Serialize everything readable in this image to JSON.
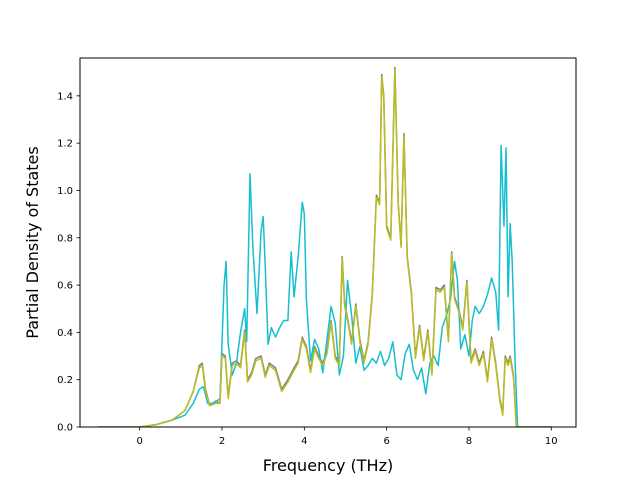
{
  "chart_data": {
    "type": "line",
    "title": "",
    "xlabel": "Frequency (THz)",
    "ylabel": "Partial Density of States",
    "xlim": [
      -1.45,
      10.6
    ],
    "ylim": [
      0.0,
      1.56
    ],
    "xticks": [
      0,
      2,
      4,
      6,
      8,
      10
    ],
    "yticks": [
      0.0,
      0.2,
      0.4,
      0.6,
      0.8,
      1.0,
      1.2,
      1.4
    ],
    "grid": false,
    "legend": "none",
    "series": [
      {
        "color": "#7f7f7f",
        "points": [
          [
            -1.0,
            0.0
          ],
          [
            0.0,
            0.0
          ],
          [
            0.4,
            0.01
          ],
          [
            0.8,
            0.03
          ],
          [
            1.1,
            0.07
          ],
          [
            1.3,
            0.15
          ],
          [
            1.45,
            0.26
          ],
          [
            1.52,
            0.27
          ],
          [
            1.6,
            0.16
          ],
          [
            1.7,
            0.09
          ],
          [
            1.85,
            0.11
          ],
          [
            1.95,
            0.1
          ],
          [
            2.0,
            0.31
          ],
          [
            2.08,
            0.3
          ],
          [
            2.15,
            0.13
          ],
          [
            2.25,
            0.27
          ],
          [
            2.35,
            0.28
          ],
          [
            2.45,
            0.26
          ],
          [
            2.55,
            0.41
          ],
          [
            2.62,
            0.2
          ],
          [
            2.72,
            0.23
          ],
          [
            2.82,
            0.29
          ],
          [
            2.95,
            0.3
          ],
          [
            3.05,
            0.22
          ],
          [
            3.15,
            0.27
          ],
          [
            3.3,
            0.25
          ],
          [
            3.45,
            0.16
          ],
          [
            3.6,
            0.2
          ],
          [
            3.75,
            0.25
          ],
          [
            3.85,
            0.28
          ],
          [
            3.95,
            0.38
          ],
          [
            4.05,
            0.34
          ],
          [
            4.15,
            0.24
          ],
          [
            4.25,
            0.34
          ],
          [
            4.35,
            0.3
          ],
          [
            4.45,
            0.27
          ],
          [
            4.55,
            0.32
          ],
          [
            4.65,
            0.45
          ],
          [
            4.75,
            0.3
          ],
          [
            4.85,
            0.27
          ],
          [
            4.92,
            0.72
          ],
          [
            4.98,
            0.52
          ],
          [
            5.05,
            0.46
          ],
          [
            5.15,
            0.36
          ],
          [
            5.25,
            0.52
          ],
          [
            5.35,
            0.37
          ],
          [
            5.45,
            0.28
          ],
          [
            5.55,
            0.36
          ],
          [
            5.65,
            0.56
          ],
          [
            5.75,
            0.98
          ],
          [
            5.83,
            0.95
          ],
          [
            5.88,
            1.49
          ],
          [
            5.93,
            1.4
          ],
          [
            6.0,
            0.85
          ],
          [
            6.1,
            0.8
          ],
          [
            6.2,
            1.52
          ],
          [
            6.28,
            0.95
          ],
          [
            6.35,
            0.77
          ],
          [
            6.42,
            1.24
          ],
          [
            6.5,
            0.72
          ],
          [
            6.6,
            0.57
          ],
          [
            6.7,
            0.3
          ],
          [
            6.8,
            0.43
          ],
          [
            6.9,
            0.29
          ],
          [
            7.0,
            0.41
          ],
          [
            7.1,
            0.23
          ],
          [
            7.2,
            0.59
          ],
          [
            7.3,
            0.58
          ],
          [
            7.4,
            0.6
          ],
          [
            7.5,
            0.37
          ],
          [
            7.58,
            0.74
          ],
          [
            7.65,
            0.55
          ],
          [
            7.75,
            0.5
          ],
          [
            7.85,
            0.42
          ],
          [
            7.95,
            0.62
          ],
          [
            8.05,
            0.28
          ],
          [
            8.15,
            0.33
          ],
          [
            8.25,
            0.27
          ],
          [
            8.35,
            0.32
          ],
          [
            8.45,
            0.2
          ],
          [
            8.55,
            0.38
          ],
          [
            8.65,
            0.27
          ],
          [
            8.75,
            0.12
          ],
          [
            8.82,
            0.06
          ],
          [
            8.88,
            0.3
          ],
          [
            8.95,
            0.27
          ],
          [
            9.0,
            0.3
          ],
          [
            9.08,
            0.22
          ],
          [
            9.15,
            0.0
          ],
          [
            10.0,
            0.0
          ]
        ]
      },
      {
        "color": "#17becf",
        "points": [
          [
            -1.0,
            0.0
          ],
          [
            0.0,
            0.0
          ],
          [
            0.4,
            0.01
          ],
          [
            0.8,
            0.03
          ],
          [
            1.1,
            0.05
          ],
          [
            1.3,
            0.1
          ],
          [
            1.45,
            0.16
          ],
          [
            1.55,
            0.17
          ],
          [
            1.65,
            0.1
          ],
          [
            1.8,
            0.1
          ],
          [
            1.95,
            0.12
          ],
          [
            2.05,
            0.6
          ],
          [
            2.1,
            0.7
          ],
          [
            2.15,
            0.35
          ],
          [
            2.25,
            0.22
          ],
          [
            2.35,
            0.27
          ],
          [
            2.45,
            0.4
          ],
          [
            2.55,
            0.5
          ],
          [
            2.6,
            0.36
          ],
          [
            2.68,
            1.07
          ],
          [
            2.75,
            0.76
          ],
          [
            2.85,
            0.48
          ],
          [
            2.95,
            0.83
          ],
          [
            3.0,
            0.89
          ],
          [
            3.05,
            0.68
          ],
          [
            3.12,
            0.35
          ],
          [
            3.2,
            0.42
          ],
          [
            3.3,
            0.38
          ],
          [
            3.4,
            0.42
          ],
          [
            3.5,
            0.45
          ],
          [
            3.6,
            0.45
          ],
          [
            3.68,
            0.74
          ],
          [
            3.75,
            0.55
          ],
          [
            3.85,
            0.72
          ],
          [
            3.95,
            0.95
          ],
          [
            4.0,
            0.9
          ],
          [
            4.05,
            0.54
          ],
          [
            4.15,
            0.28
          ],
          [
            4.25,
            0.37
          ],
          [
            4.35,
            0.33
          ],
          [
            4.45,
            0.23
          ],
          [
            4.55,
            0.37
          ],
          [
            4.65,
            0.51
          ],
          [
            4.75,
            0.44
          ],
          [
            4.85,
            0.22
          ],
          [
            4.95,
            0.3
          ],
          [
            5.05,
            0.62
          ],
          [
            5.15,
            0.47
          ],
          [
            5.25,
            0.27
          ],
          [
            5.35,
            0.34
          ],
          [
            5.45,
            0.24
          ],
          [
            5.55,
            0.26
          ],
          [
            5.65,
            0.29
          ],
          [
            5.75,
            0.27
          ],
          [
            5.85,
            0.32
          ],
          [
            5.95,
            0.26
          ],
          [
            6.05,
            0.29
          ],
          [
            6.15,
            0.36
          ],
          [
            6.25,
            0.22
          ],
          [
            6.35,
            0.2
          ],
          [
            6.45,
            0.31
          ],
          [
            6.55,
            0.35
          ],
          [
            6.65,
            0.24
          ],
          [
            6.75,
            0.2
          ],
          [
            6.85,
            0.25
          ],
          [
            6.95,
            0.14
          ],
          [
            7.05,
            0.27
          ],
          [
            7.15,
            0.3
          ],
          [
            7.25,
            0.26
          ],
          [
            7.35,
            0.42
          ],
          [
            7.45,
            0.47
          ],
          [
            7.55,
            0.54
          ],
          [
            7.65,
            0.7
          ],
          [
            7.72,
            0.62
          ],
          [
            7.8,
            0.33
          ],
          [
            7.9,
            0.39
          ],
          [
            8.0,
            0.3
          ],
          [
            8.08,
            0.45
          ],
          [
            8.15,
            0.51
          ],
          [
            8.25,
            0.48
          ],
          [
            8.35,
            0.51
          ],
          [
            8.45,
            0.56
          ],
          [
            8.55,
            0.63
          ],
          [
            8.65,
            0.57
          ],
          [
            8.72,
            0.41
          ],
          [
            8.78,
            1.19
          ],
          [
            8.85,
            0.85
          ],
          [
            8.9,
            1.18
          ],
          [
            8.95,
            0.55
          ],
          [
            9.0,
            0.86
          ],
          [
            9.05,
            0.7
          ],
          [
            9.12,
            0.28
          ],
          [
            9.18,
            0.0
          ],
          [
            10.0,
            0.0
          ]
        ]
      },
      {
        "color": "#bcbd22",
        "points": [
          [
            -1.0,
            0.0
          ],
          [
            0.0,
            0.0
          ],
          [
            0.4,
            0.01
          ],
          [
            0.8,
            0.03
          ],
          [
            1.1,
            0.07
          ],
          [
            1.3,
            0.15
          ],
          [
            1.45,
            0.25
          ],
          [
            1.52,
            0.26
          ],
          [
            1.6,
            0.15
          ],
          [
            1.7,
            0.09
          ],
          [
            1.85,
            0.1
          ],
          [
            1.95,
            0.1
          ],
          [
            2.0,
            0.3
          ],
          [
            2.08,
            0.29
          ],
          [
            2.15,
            0.12
          ],
          [
            2.25,
            0.26
          ],
          [
            2.35,
            0.27
          ],
          [
            2.45,
            0.25
          ],
          [
            2.55,
            0.4
          ],
          [
            2.62,
            0.19
          ],
          [
            2.72,
            0.22
          ],
          [
            2.82,
            0.28
          ],
          [
            2.95,
            0.29
          ],
          [
            3.05,
            0.21
          ],
          [
            3.15,
            0.26
          ],
          [
            3.3,
            0.24
          ],
          [
            3.45,
            0.15
          ],
          [
            3.6,
            0.19
          ],
          [
            3.75,
            0.24
          ],
          [
            3.85,
            0.27
          ],
          [
            3.95,
            0.37
          ],
          [
            4.05,
            0.33
          ],
          [
            4.15,
            0.23
          ],
          [
            4.25,
            0.33
          ],
          [
            4.35,
            0.29
          ],
          [
            4.45,
            0.26
          ],
          [
            4.55,
            0.31
          ],
          [
            4.65,
            0.44
          ],
          [
            4.75,
            0.29
          ],
          [
            4.85,
            0.26
          ],
          [
            4.92,
            0.71
          ],
          [
            4.98,
            0.51
          ],
          [
            5.05,
            0.45
          ],
          [
            5.15,
            0.35
          ],
          [
            5.25,
            0.51
          ],
          [
            5.35,
            0.36
          ],
          [
            5.45,
            0.27
          ],
          [
            5.55,
            0.35
          ],
          [
            5.65,
            0.55
          ],
          [
            5.75,
            0.97
          ],
          [
            5.83,
            0.94
          ],
          [
            5.88,
            1.48
          ],
          [
            5.93,
            1.39
          ],
          [
            6.0,
            0.84
          ],
          [
            6.1,
            0.79
          ],
          [
            6.2,
            1.51
          ],
          [
            6.28,
            0.94
          ],
          [
            6.35,
            0.76
          ],
          [
            6.42,
            1.23
          ],
          [
            6.5,
            0.71
          ],
          [
            6.6,
            0.56
          ],
          [
            6.7,
            0.29
          ],
          [
            6.8,
            0.42
          ],
          [
            6.9,
            0.28
          ],
          [
            7.0,
            0.4
          ],
          [
            7.1,
            0.22
          ],
          [
            7.2,
            0.58
          ],
          [
            7.3,
            0.57
          ],
          [
            7.4,
            0.59
          ],
          [
            7.5,
            0.36
          ],
          [
            7.58,
            0.73
          ],
          [
            7.65,
            0.54
          ],
          [
            7.75,
            0.49
          ],
          [
            7.85,
            0.41
          ],
          [
            7.95,
            0.61
          ],
          [
            8.05,
            0.27
          ],
          [
            8.15,
            0.32
          ],
          [
            8.25,
            0.26
          ],
          [
            8.35,
            0.31
          ],
          [
            8.45,
            0.19
          ],
          [
            8.55,
            0.37
          ],
          [
            8.65,
            0.26
          ],
          [
            8.75,
            0.11
          ],
          [
            8.82,
            0.05
          ],
          [
            8.88,
            0.29
          ],
          [
            8.95,
            0.26
          ],
          [
            9.0,
            0.29
          ],
          [
            9.08,
            0.21
          ],
          [
            9.15,
            0.0
          ],
          [
            10.0,
            0.0
          ]
        ]
      }
    ]
  }
}
